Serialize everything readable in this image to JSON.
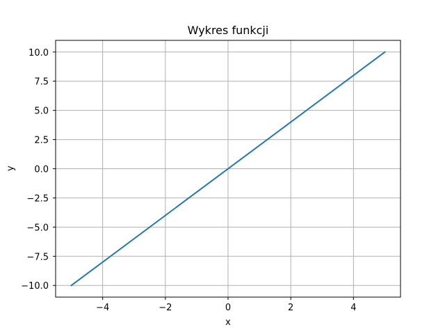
{
  "chart_data": {
    "type": "line",
    "title": "Wykres funkcji",
    "xlabel": "x",
    "ylabel": "y",
    "xlim": [
      -5.5,
      5.5
    ],
    "ylim": [
      -11,
      11
    ],
    "xticks": [
      -4,
      -2,
      0,
      2,
      4
    ],
    "xtick_labels": [
      "−4",
      "−2",
      "0",
      "2",
      "4"
    ],
    "yticks": [
      -10,
      -7.5,
      -5,
      -2.5,
      0,
      2.5,
      5,
      7.5,
      10
    ],
    "ytick_labels": [
      "−10.0",
      "−7.5",
      "−5.0",
      "−2.5",
      "0.0",
      "2.5",
      "5.0",
      "7.5",
      "10.0"
    ],
    "grid": true,
    "series": [
      {
        "color": "#1f77b4",
        "x": [
          -5,
          5
        ],
        "y": [
          -10,
          10
        ]
      }
    ]
  },
  "colors": {
    "grid": "#b0b0b0",
    "axes": "#000000",
    "background": "#ffffff"
  }
}
